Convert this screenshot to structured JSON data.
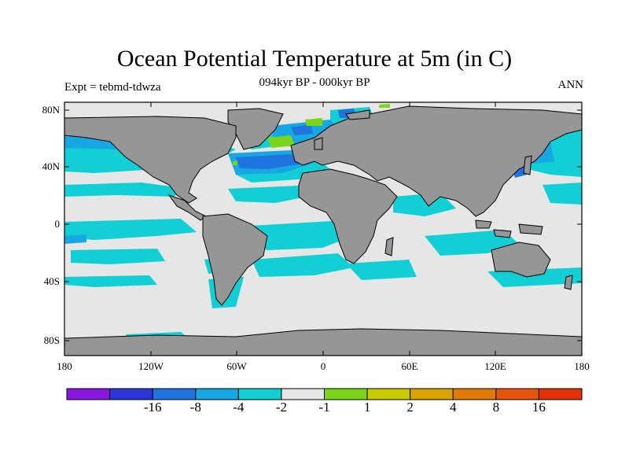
{
  "map": {
    "title": "Ocean Potential Temperature at 5m (in C)",
    "subtitle": "094kyr BP - 000kyr BP",
    "experiment": "Expt = tebmd-tdwza",
    "season": "ANN",
    "lat_labels": [
      "80N",
      "40N",
      "0",
      "40S",
      "80S"
    ],
    "lon_labels": [
      "180",
      "120W",
      "60W",
      "0",
      "60E",
      "120E",
      "180"
    ]
  },
  "colorbar": {
    "colors": [
      "#8a17e0",
      "#2e35d8",
      "#1f74dd",
      "#17a7e2",
      "#11cfd4",
      "#e6e6e6",
      "#7bd51a",
      "#c9c900",
      "#d9a300",
      "#e07a05",
      "#e5550b",
      "#e33207"
    ],
    "labels": [
      "-16",
      "-8",
      "-4",
      "-2",
      "-1",
      "1",
      "2",
      "4",
      "8",
      "16"
    ]
  },
  "legend_colors": {
    "land": "#969696",
    "ocean_neutral": "#e6e6e6"
  }
}
